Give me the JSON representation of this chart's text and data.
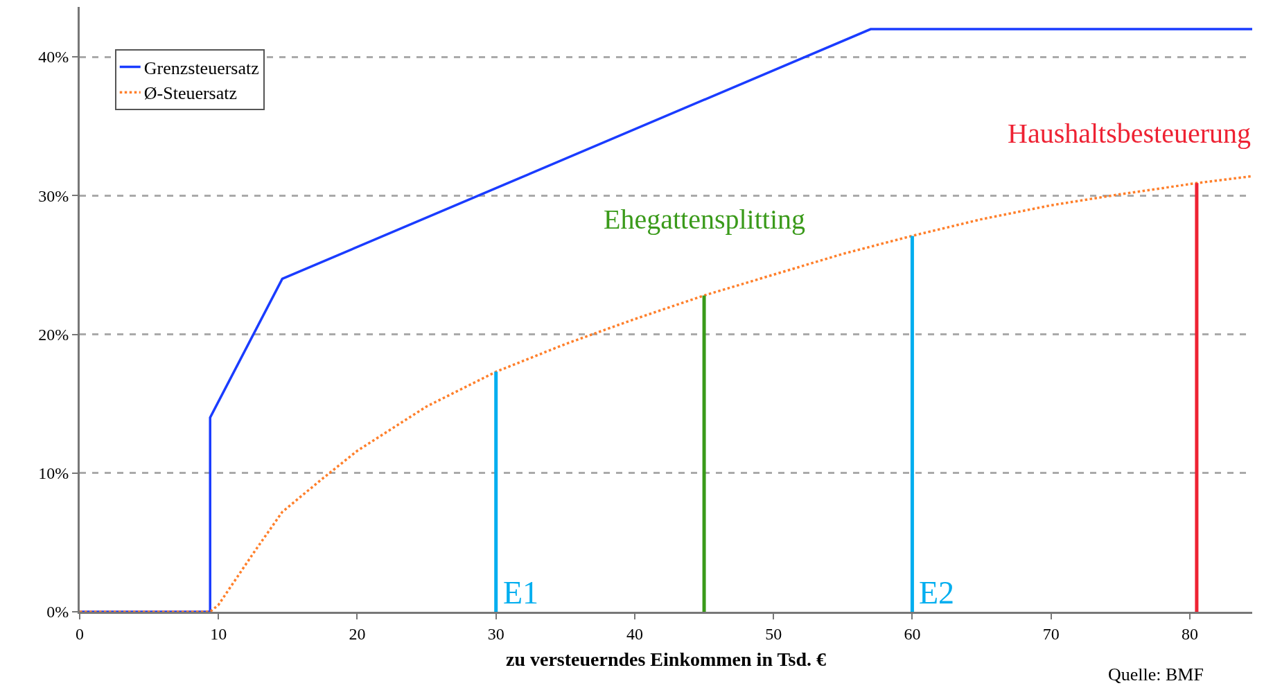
{
  "chart_data": {
    "type": "line",
    "xlabel": "zu versteuerndes Einkommen in Tsd. €",
    "xlim": [
      0,
      84.5
    ],
    "ylim": [
      0,
      43.6
    ],
    "xticks": [
      0,
      10,
      20,
      30,
      40,
      50,
      60,
      70,
      80
    ],
    "yticks": [
      {
        "value": 0,
        "label": "0%"
      },
      {
        "value": 10,
        "label": "10%"
      },
      {
        "value": 20,
        "label": "20%"
      },
      {
        "value": 30,
        "label": "30%"
      },
      {
        "value": 40,
        "label": "40%"
      }
    ],
    "grid": "y",
    "legend": "top left",
    "marker": "none",
    "series": [
      {
        "name": "Grenzsteuersatz",
        "color": "#1a3cff",
        "line_style": "solid",
        "x": [
          0,
          9.4,
          9.4,
          14.6,
          57,
          84.5
        ],
        "values": [
          0,
          0,
          14,
          24,
          42,
          42
        ]
      },
      {
        "name": "Ø-Steuersatz",
        "color": "#ff7f2a",
        "line_style": "dotted",
        "x": [
          0,
          9.4,
          10,
          12.5,
          14.6,
          17.5,
          20,
          25,
          30,
          35,
          40,
          45,
          50,
          55,
          60,
          65,
          70,
          75,
          80.5,
          84.5
        ],
        "values": [
          0,
          0,
          0.5,
          4.2,
          7.2,
          9.6,
          11.6,
          14.8,
          17.3,
          19.3,
          21.1,
          22.8,
          24.3,
          25.8,
          27.1,
          28.3,
          29.3,
          30.1,
          30.9,
          31.4
        ]
      },
      {
        "name": "E1",
        "color": "#00aeef",
        "line_style": "solid",
        "x": [
          30,
          30
        ],
        "values": [
          0,
          17.3
        ]
      },
      {
        "name": "Ehegattensplitting",
        "color": "#3a9a1a",
        "line_style": "solid",
        "x": [
          45,
          45
        ],
        "values": [
          0,
          22.8
        ]
      },
      {
        "name": "E2",
        "color": "#00aeef",
        "line_style": "solid",
        "x": [
          60,
          60
        ],
        "values": [
          0,
          27.1
        ]
      },
      {
        "name": "Haushaltsbesteuerung",
        "color": "#ee2233",
        "line_style": "solid",
        "x": [
          80.5,
          80.5
        ],
        "values": [
          0,
          30.9
        ]
      }
    ],
    "annotations": [
      "Quelle: BMF"
    ]
  }
}
